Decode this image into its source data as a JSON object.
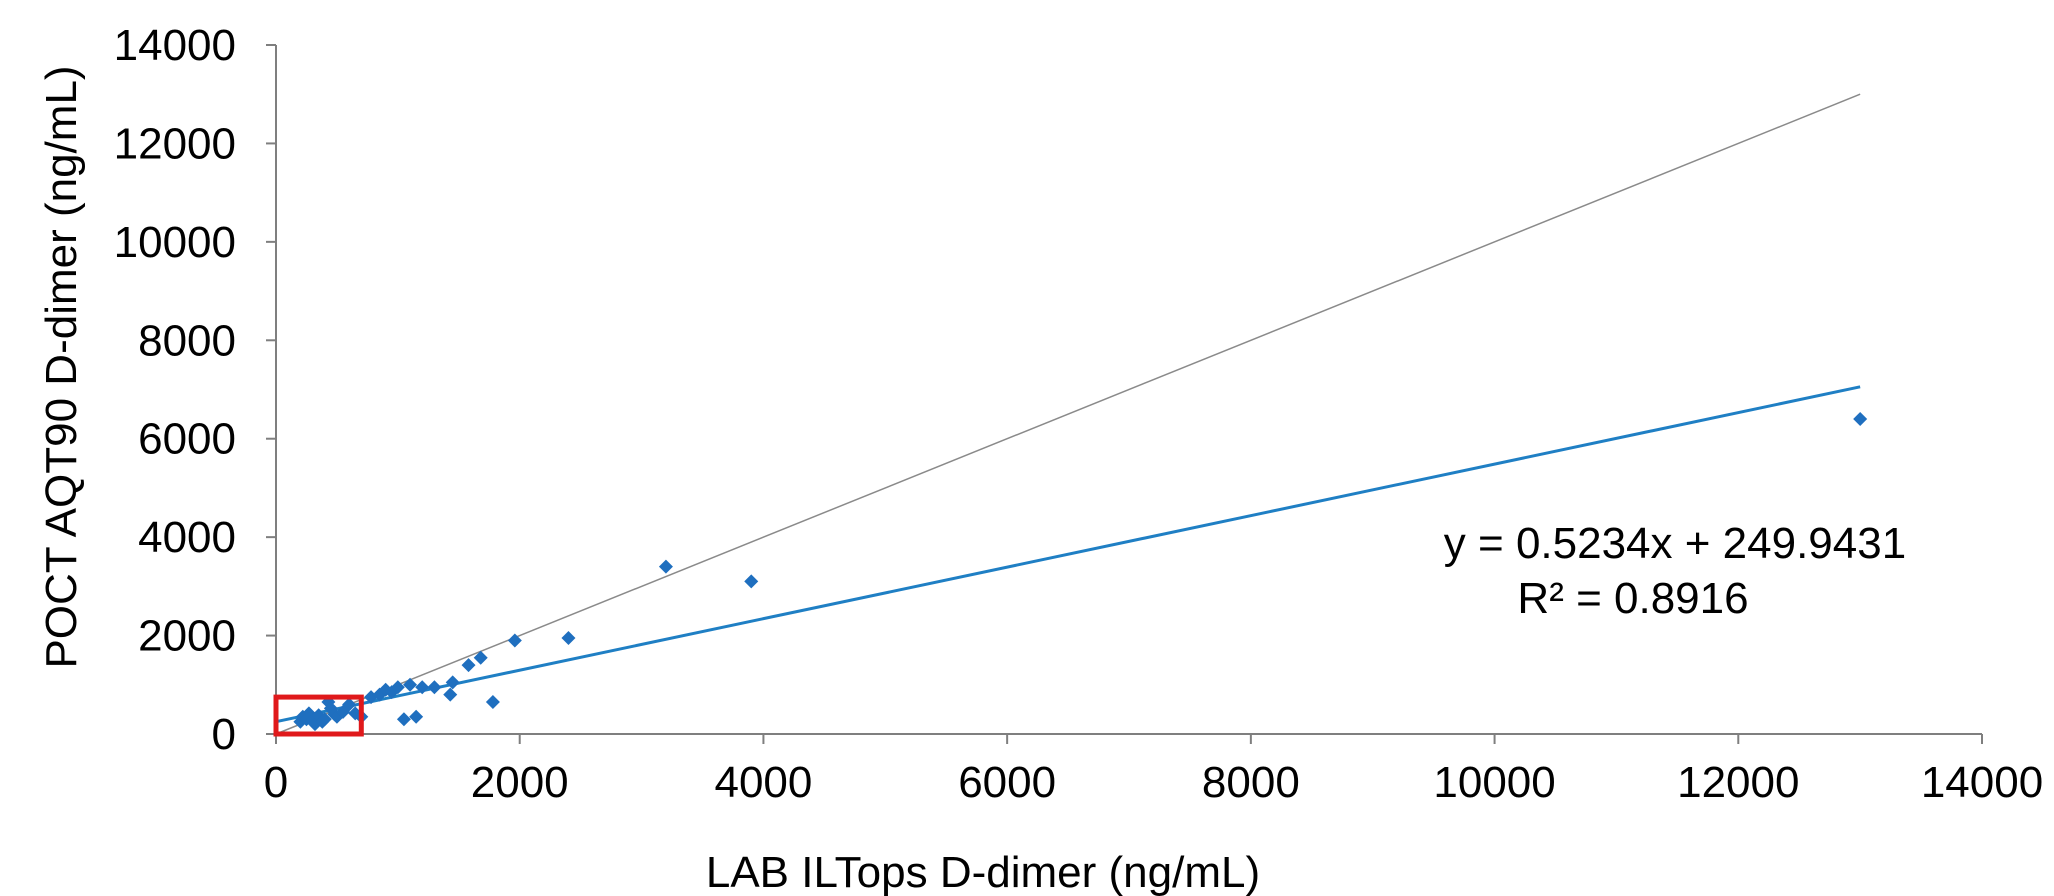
{
  "chart_data": {
    "type": "scatter",
    "xlabel": "LAB ILTops D-dimer (ng/mL)",
    "ylabel": "POCT AQT90 D-dimer (ng/mL)",
    "xlim": [
      0,
      14000
    ],
    "ylim": [
      0,
      14000
    ],
    "xticks": [
      "0",
      "2000",
      "4000",
      "6000",
      "8000",
      "10000",
      "12000",
      "14000"
    ],
    "yticks": [
      "0",
      "2000",
      "4000",
      "6000",
      "8000",
      "10000",
      "12000",
      "14000"
    ],
    "grid": false,
    "legend": "none",
    "colors": {
      "points": "#1f6fbf",
      "trendline": "#1f7fc4",
      "identity": "#8a8a8a",
      "highlight_box": "#e0191b",
      "axis": "#7f7f7f"
    },
    "series": [
      {
        "points": [
          [
            200,
            250
          ],
          [
            220,
            350
          ],
          [
            250,
            300
          ],
          [
            270,
            420
          ],
          [
            300,
            280
          ],
          [
            320,
            200
          ],
          [
            350,
            380
          ],
          [
            380,
            250
          ],
          [
            400,
            300
          ],
          [
            430,
            650
          ],
          [
            450,
            520
          ],
          [
            480,
            400
          ],
          [
            500,
            350
          ],
          [
            550,
            450
          ],
          [
            600,
            600
          ],
          [
            650,
            420
          ],
          [
            700,
            350
          ],
          [
            780,
            750
          ],
          [
            850,
            800
          ],
          [
            900,
            900
          ],
          [
            950,
            850
          ],
          [
            1000,
            950
          ],
          [
            1050,
            300
          ],
          [
            1100,
            1000
          ],
          [
            1150,
            350
          ],
          [
            1200,
            950
          ],
          [
            1300,
            950
          ],
          [
            1430,
            800
          ],
          [
            1450,
            1050
          ],
          [
            1580,
            1400
          ],
          [
            1680,
            1550
          ],
          [
            1780,
            650
          ],
          [
            1960,
            1900
          ],
          [
            2400,
            1950
          ],
          [
            3200,
            3400
          ],
          [
            3900,
            3100
          ],
          [
            13000,
            6400
          ]
        ]
      }
    ],
    "trendline": {
      "slope": 0.5234,
      "intercept": 249.9431,
      "x_range": [
        0,
        13000
      ]
    },
    "identity_line": {
      "x_range": [
        0,
        13000
      ]
    },
    "highlight_box": {
      "x": [
        0,
        700
      ],
      "y": [
        0,
        750
      ]
    },
    "annotation": {
      "equation": "y = 0.5234x + 249.9431",
      "r_squared": "R² = 0.8916"
    }
  }
}
